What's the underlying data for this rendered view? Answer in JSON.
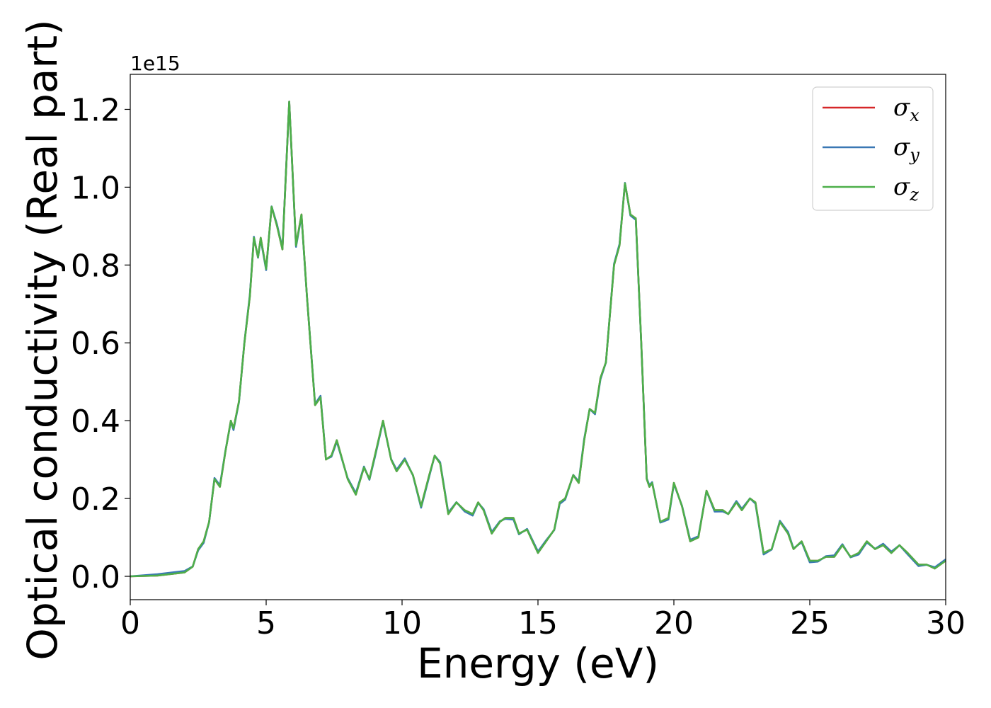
{
  "chart_data": {
    "type": "line",
    "title": "",
    "xlabel": "Energy (eV)",
    "ylabel": "Optical conductivity (Real part)",
    "y_offset_text": "1e15",
    "xlim": [
      0,
      30
    ],
    "ylim": [
      -0.06,
      1.29
    ],
    "xticks": [
      0,
      5,
      10,
      15,
      20,
      25,
      30
    ],
    "xtick_labels": [
      "0",
      "5",
      "10",
      "15",
      "20",
      "25",
      "30"
    ],
    "yticks": [
      0.0,
      0.2,
      0.4,
      0.6,
      0.8,
      1.0,
      1.2
    ],
    "ytick_labels": [
      "0.0",
      "0.2",
      "0.4",
      "0.6",
      "0.8",
      "1.0",
      "1.2"
    ],
    "grid": false,
    "legend_position": "top-right",
    "series": [
      {
        "name": "σ",
        "subscript": "x",
        "color": "#d62728"
      },
      {
        "name": "σ",
        "subscript": "y",
        "color": "#3a78b4"
      },
      {
        "name": "σ",
        "subscript": "z",
        "color": "#4daf4a"
      }
    ],
    "x": [
      0,
      1,
      2,
      2.3,
      2.5,
      2.7,
      2.9,
      3.1,
      3.3,
      3.5,
      3.7,
      3.8,
      4.0,
      4.2,
      4.4,
      4.55,
      4.7,
      4.8,
      5.0,
      5.2,
      5.4,
      5.6,
      5.85,
      6.1,
      6.3,
      6.5,
      6.8,
      7.0,
      7.2,
      7.4,
      7.6,
      7.8,
      8.0,
      8.3,
      8.6,
      8.8,
      9.0,
      9.3,
      9.6,
      9.8,
      10.1,
      10.4,
      10.7,
      11.0,
      11.2,
      11.4,
      11.7,
      12.0,
      12.3,
      12.6,
      12.8,
      13.0,
      13.3,
      13.6,
      13.8,
      14.1,
      14.3,
      14.6,
      15.0,
      15.3,
      15.6,
      15.8,
      16.0,
      16.3,
      16.5,
      16.7,
      16.9,
      17.1,
      17.3,
      17.5,
      17.8,
      18.0,
      18.2,
      18.4,
      18.6,
      18.8,
      19.0,
      19.1,
      19.2,
      19.5,
      19.8,
      20.0,
      20.3,
      20.6,
      20.9,
      21.2,
      21.5,
      21.8,
      22.0,
      22.3,
      22.5,
      22.8,
      23.0,
      23.3,
      23.6,
      23.9,
      24.2,
      24.4,
      24.7,
      25.0,
      25.3,
      25.6,
      25.9,
      26.2,
      26.5,
      26.8,
      27.1,
      27.4,
      27.7,
      28.0,
      28.3,
      28.6,
      29.0,
      29.3,
      29.6,
      30.0
    ],
    "y": [
      0.0,
      0.002,
      0.01,
      0.025,
      0.07,
      0.09,
      0.14,
      0.25,
      0.23,
      0.32,
      0.4,
      0.38,
      0.45,
      0.6,
      0.72,
      0.87,
      0.82,
      0.87,
      0.79,
      0.95,
      0.9,
      0.84,
      1.22,
      0.85,
      0.93,
      0.72,
      0.44,
      0.46,
      0.3,
      0.31,
      0.35,
      0.3,
      0.25,
      0.21,
      0.28,
      0.25,
      0.31,
      0.4,
      0.3,
      0.27,
      0.3,
      0.26,
      0.18,
      0.26,
      0.31,
      0.29,
      0.16,
      0.19,
      0.17,
      0.16,
      0.19,
      0.17,
      0.11,
      0.14,
      0.15,
      0.15,
      0.11,
      0.12,
      0.06,
      0.09,
      0.12,
      0.19,
      0.2,
      0.26,
      0.24,
      0.35,
      0.43,
      0.42,
      0.51,
      0.55,
      0.8,
      0.85,
      1.01,
      0.93,
      0.92,
      0.6,
      0.25,
      0.23,
      0.24,
      0.14,
      0.15,
      0.24,
      0.18,
      0.09,
      0.1,
      0.22,
      0.17,
      0.17,
      0.16,
      0.19,
      0.17,
      0.2,
      0.19,
      0.06,
      0.07,
      0.14,
      0.11,
      0.07,
      0.09,
      0.04,
      0.04,
      0.05,
      0.05,
      0.08,
      0.05,
      0.06,
      0.09,
      0.07,
      0.08,
      0.06,
      0.08,
      0.06,
      0.03,
      0.03,
      0.02,
      0.04
    ]
  }
}
